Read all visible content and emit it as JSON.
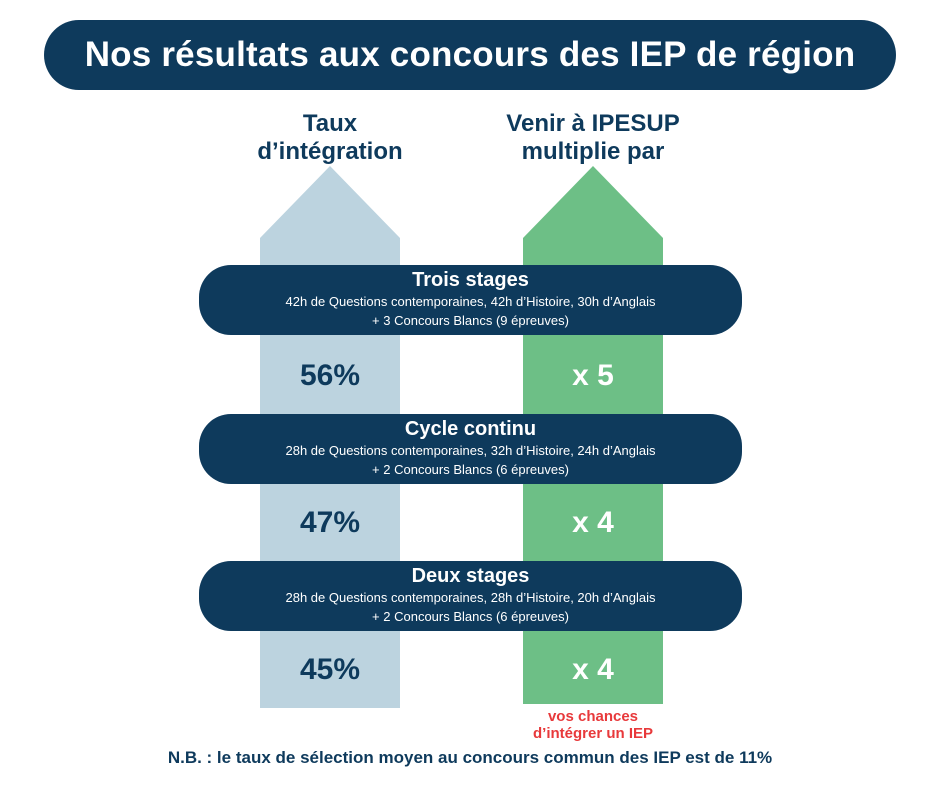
{
  "title": "Nos résultats aux concours des IEP de région",
  "columns": {
    "rate_header": [
      "Taux",
      "d’intégration"
    ],
    "mult_header": [
      "Venir à IPESUP",
      "multiplie par"
    ]
  },
  "stages": [
    {
      "name": "Trois stages",
      "line1": "42h de Questions contemporaines, 42h d’Histoire, 30h d’Anglais",
      "line2": "+ 3 Concours Blancs (9 épreuves)",
      "rate": "56%",
      "multiplier": "x 5"
    },
    {
      "name": "Cycle continu",
      "line1": "28h de Questions contemporaines, 32h d’Histoire, 24h d’Anglais",
      "line2": "+ 2 Concours Blancs (6 épreuves)",
      "rate": "47%",
      "multiplier": "x 4"
    },
    {
      "name": "Deux stages",
      "line1": "28h de Questions contemporaines, 28h d’Histoire, 20h d’Anglais",
      "line2": "+ 2 Concours Blancs (6 épreuves)",
      "rate": "45%",
      "multiplier": "x 4"
    }
  ],
  "caption": [
    "vos chances",
    "d’intégrer un IEP"
  ],
  "footnote": "N.B. : le taux de sélection moyen au concours commun des IEP est de 11%",
  "colors": {
    "navy": "#0e3a5c",
    "rate_arrow": "#bcd3df",
    "mult_arrow": "#6dbf86",
    "accent_red": "#e8393b"
  }
}
